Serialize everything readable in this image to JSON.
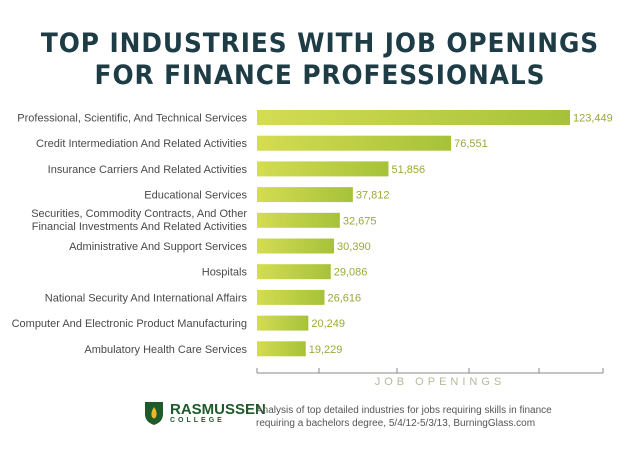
{
  "chart_data": {
    "type": "bar",
    "orientation": "horizontal",
    "title": "TOP INDUSTRIES WITH JOB OPENINGS FOR FINANCE PROFESSIONALS",
    "xlabel": "JOB OPENINGS",
    "ylabel": "",
    "categories": [
      "Professional, Scientific, And Technical Services",
      "Credit Intermediation And Related Activities",
      "Insurance Carriers And Related Activities",
      "Educational Services",
      "Securities, Commodity Contracts, And Other|Financial Investments And Related Activities",
      "Administrative And Support Services",
      "Hospitals",
      "National Security And International Affairs",
      "Computer And Electronic Product Manufacturing",
      "Ambulatory Health Care Services"
    ],
    "values": [
      123449,
      76551,
      51856,
      37812,
      32675,
      30390,
      29086,
      26616,
      20249,
      19229
    ],
    "value_labels": [
      "123,449",
      "76,551",
      "51,856",
      "37,812",
      "32,675",
      "30,390",
      "29,086",
      "26,616",
      "20,249",
      "19,229"
    ],
    "grid": false,
    "bar_color_start": "#d4dc52",
    "bar_color_end": "#a6c23a"
  },
  "footer": {
    "brand": "RASMUSSEN",
    "brand_sub": "COLLEGE",
    "source_line1": "Analysis of top detailed industries for jobs requiring skills in finance",
    "source_line2": "requiring a bachelors degree, 5/4/12-5/3/13, BurningGlass.com"
  },
  "colors": {
    "title": "#1d3c46",
    "brand": "#1e5a2a"
  }
}
